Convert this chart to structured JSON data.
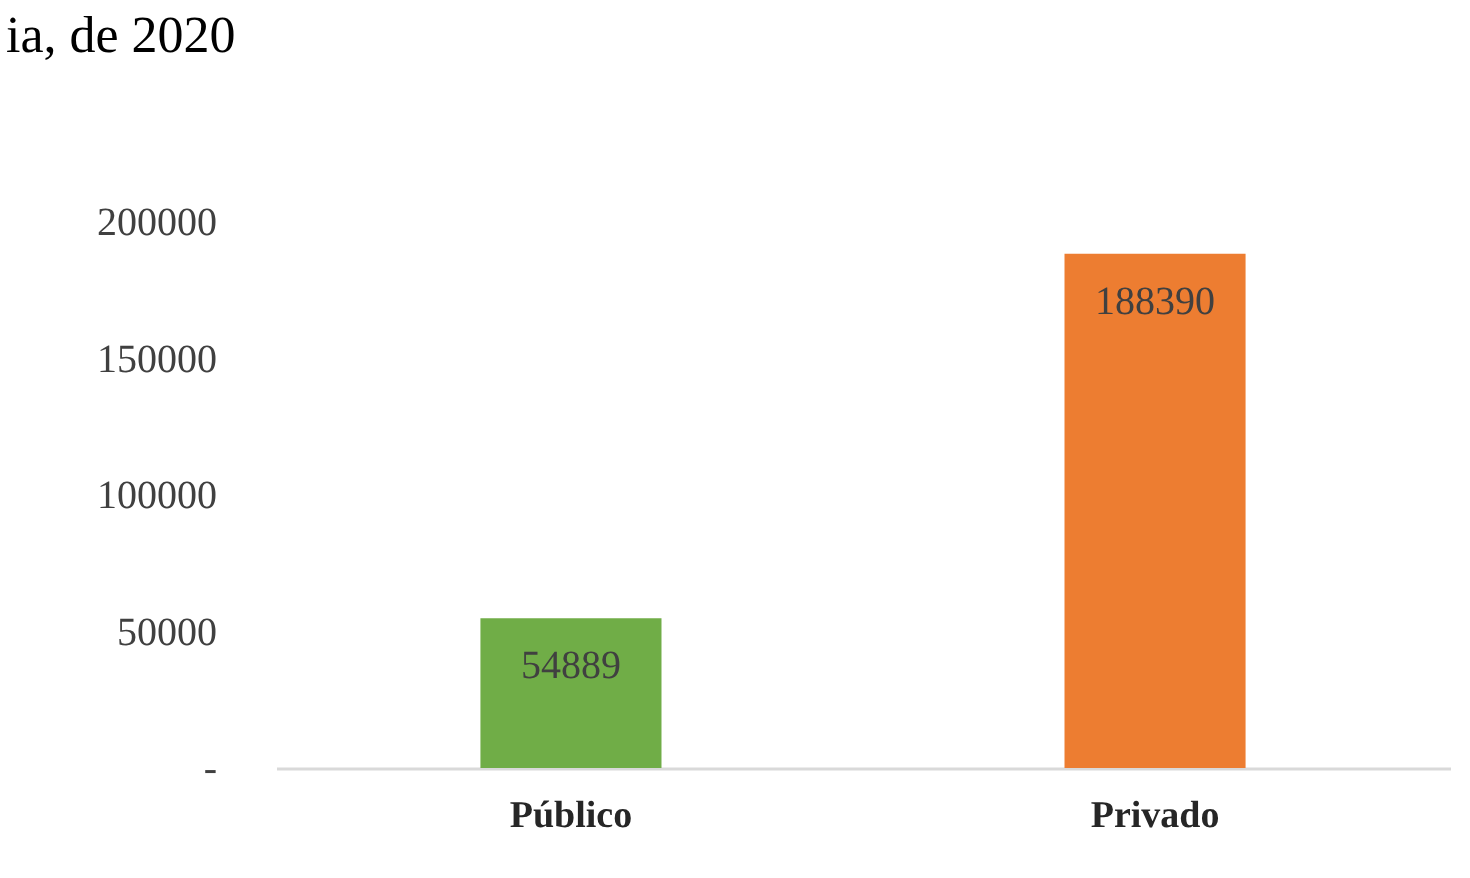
{
  "chart_data": {
    "type": "bar",
    "title": "ia, de 2020",
    "categories": [
      "Público",
      "Privado"
    ],
    "values": [
      54889,
      188390
    ],
    "colors": [
      "#70ad47",
      "#ed7d31"
    ],
    "ylim": [
      0,
      200000
    ],
    "yticks": [
      {
        "value": 0,
        "label": "-"
      },
      50000,
      100000,
      150000,
      200000
    ],
    "data_labels": true,
    "grid": false
  }
}
